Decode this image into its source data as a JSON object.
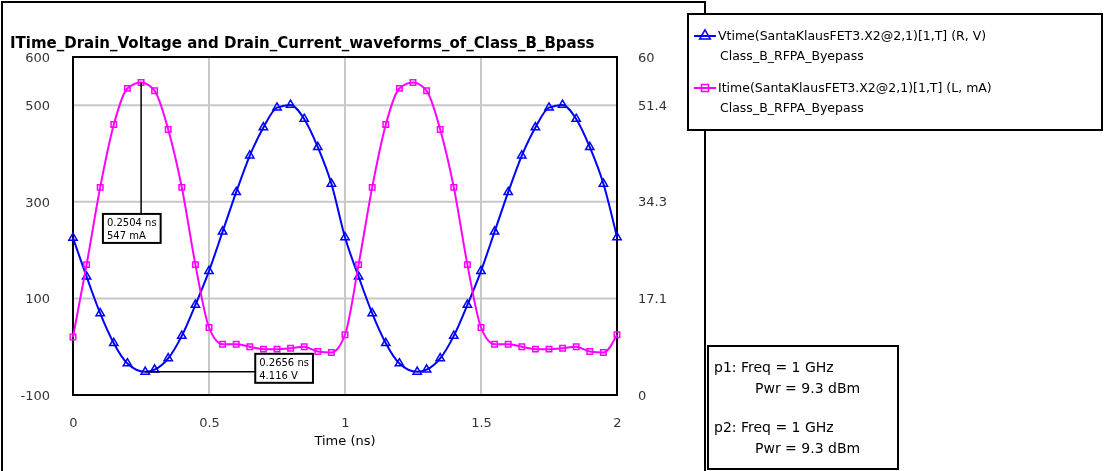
{
  "chart_data": {
    "type": "line",
    "title": "ITime_Drain_Voltage and Drain_Current_waveforms_of_Class_B_Bpass",
    "xlabel": "Time (ns)",
    "xlim": [
      0,
      2
    ],
    "xticks": [
      0,
      0.5,
      1,
      1.5,
      2
    ],
    "ylim": [
      -100,
      600
    ],
    "yticks": [
      -100,
      100,
      300,
      500,
      600
    ],
    "y2lim": [
      0,
      60
    ],
    "y2ticks": [
      0,
      17.1,
      34.3,
      51.4,
      60
    ],
    "grid": true,
    "legend": "top right",
    "line_style": "solid",
    "series": [
      {
        "name": "Vtime(SantaKlausFET3.X2@2,1)[1,T] (R, V)\nClass_B_RFPA_Byepass",
        "color": "#0000ff",
        "axis": "y2",
        "marker": "triangle",
        "x": [
          0,
          0.05,
          0.1,
          0.15,
          0.2,
          0.2656,
          0.3,
          0.35,
          0.4,
          0.45,
          0.5,
          0.55,
          0.6,
          0.65,
          0.7,
          0.75,
          0.8,
          0.85,
          0.9,
          0.95,
          1,
          1.05,
          1.1,
          1.15,
          1.2,
          1.2656,
          1.3,
          1.35,
          1.4,
          1.45,
          1.5,
          1.55,
          1.6,
          1.65,
          1.7,
          1.75,
          1.8,
          1.85,
          1.9,
          1.95,
          2
        ],
        "values": [
          27.9,
          21,
          14.5,
          9.2,
          5.6,
          4.116,
          4.5,
          6.5,
          10.5,
          16,
          22,
          29,
          36,
          42.5,
          47.5,
          51,
          51.5,
          49,
          44,
          37.5,
          28,
          21,
          14.5,
          9.2,
          5.6,
          4.116,
          4.5,
          6.5,
          10.5,
          16,
          22,
          29,
          36,
          42.5,
          47.5,
          51,
          51.5,
          49,
          44,
          37.5,
          28
        ]
      },
      {
        "name": "Itime(SantaKlausFET3.X2@2,1)[1,T] (L, mA)\nClass_B_RFPA_Byepass",
        "color": "#ff00ff",
        "marker": "square",
        "x": [
          0,
          0.05,
          0.1,
          0.15,
          0.2,
          0.2504,
          0.3,
          0.35,
          0.4,
          0.45,
          0.5,
          0.55,
          0.6,
          0.65,
          0.7,
          0.75,
          0.8,
          0.85,
          0.9,
          0.95,
          1,
          1.05,
          1.1,
          1.15,
          1.2,
          1.25,
          1.3,
          1.35,
          1.4,
          1.45,
          1.5,
          1.55,
          1.6,
          1.65,
          1.7,
          1.75,
          1.8,
          1.85,
          1.9,
          1.95,
          2
        ],
        "values": [
          20,
          170,
          330,
          460,
          535,
          547,
          530,
          450,
          330,
          170,
          40,
          5,
          5,
          0,
          -5,
          -5,
          -3,
          0,
          -10,
          -12,
          25,
          170,
          330,
          460,
          535,
          547,
          530,
          450,
          330,
          170,
          40,
          5,
          5,
          0,
          -5,
          -5,
          -3,
          0,
          -10,
          -12,
          25
        ]
      }
    ],
    "annotations": [
      {
        "text": "0.2504 ns\n547 mA",
        "x": 0.2504,
        "y": 547
      },
      {
        "text": "0.2656 ns\n4.116 V",
        "x": 0.2656,
        "y": -52
      },
      "p1: Freq = 1 GHz\nPwr = 9.3 dBm",
      "p2: Freq = 1 GHz\nPwr = 9.3 dBm"
    ]
  }
}
